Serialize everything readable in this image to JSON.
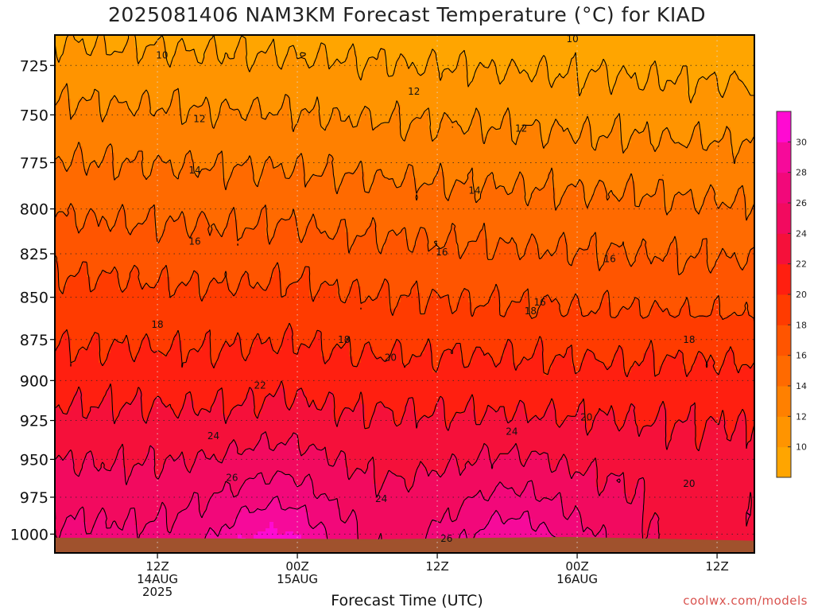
{
  "title": "2025081406 NAM3KM Forecast Temperature (°C) for KIAD",
  "credit": "coolwx.com/models",
  "chart_data": {
    "type": "heatmap",
    "title": "2025081406 NAM3KM Forecast Temperature (°C) for KIAD",
    "xlabel": "Forecast Time (UTC)",
    "ylabel": "",
    "x_unit": "hours",
    "x_range": [
      -5,
      70
    ],
    "y_range": [
      1013,
      710
    ],
    "y_scale": "log",
    "y_ticks": [
      725,
      750,
      775,
      800,
      825,
      850,
      875,
      900,
      925,
      950,
      975,
      1000
    ],
    "x_ticks": [
      {
        "x": 6,
        "lines": [
          "12Z",
          "14AUG",
          "2025"
        ]
      },
      {
        "x": 21,
        "lines": [
          "00Z",
          "15AUG"
        ]
      },
      {
        "x": 36,
        "lines": [
          "12Z"
        ]
      },
      {
        "x": 51,
        "lines": [
          "00Z",
          "16AUG"
        ]
      },
      {
        "x": 66,
        "lines": [
          "12Z"
        ]
      }
    ],
    "grid": true,
    "contour_interval": 2,
    "contour_labels": [
      {
        "value": 10,
        "x": 6.5,
        "p": 720
      },
      {
        "value": 10,
        "x": 50.5,
        "p": 712
      },
      {
        "value": 12,
        "x": 33.5,
        "p": 738
      },
      {
        "value": 12,
        "x": 10.5,
        "p": 752
      },
      {
        "value": 12,
        "x": 45,
        "p": 757
      },
      {
        "value": 14,
        "x": 10,
        "p": 779
      },
      {
        "value": 14,
        "x": 40,
        "p": 790
      },
      {
        "value": 16,
        "x": 10,
        "p": 818
      },
      {
        "value": 16,
        "x": 36.5,
        "p": 824
      },
      {
        "value": 16,
        "x": 54.5,
        "p": 828
      },
      {
        "value": 16,
        "x": 47,
        "p": 853
      },
      {
        "value": 18,
        "x": 6,
        "p": 866
      },
      {
        "value": 18,
        "x": 26,
        "p": 875
      },
      {
        "value": 18,
        "x": 46,
        "p": 858
      },
      {
        "value": 18,
        "x": 63,
        "p": 875
      },
      {
        "value": 20,
        "x": 31,
        "p": 886
      },
      {
        "value": 20,
        "x": 52,
        "p": 923
      },
      {
        "value": 20,
        "x": 63,
        "p": 966
      },
      {
        "value": 22,
        "x": 17,
        "p": 903
      },
      {
        "value": 24,
        "x": 12,
        "p": 935
      },
      {
        "value": 24,
        "x": 44,
        "p": 932
      },
      {
        "value": 24,
        "x": 30,
        "p": 976
      },
      {
        "value": 26,
        "x": 14,
        "p": 962
      },
      {
        "value": 26,
        "x": 37,
        "p": 1003
      }
    ],
    "colorbar": {
      "levels": [
        8,
        10,
        12,
        14,
        16,
        18,
        20,
        22,
        24,
        26,
        28,
        30,
        32
      ],
      "tick_labels": [
        10,
        12,
        14,
        16,
        18,
        20,
        22,
        24,
        26,
        28,
        30
      ],
      "colors": [
        "#ffa500",
        "#ff9400",
        "#ff8000",
        "#ff6a00",
        "#ff5500",
        "#ff3b00",
        "#ff1f10",
        "#f5103a",
        "#f20a5f",
        "#f2087a",
        "#f60a9a",
        "#ff0ad2"
      ]
    },
    "contour_color": "#000000",
    "ground_color": "#a0522d"
  }
}
